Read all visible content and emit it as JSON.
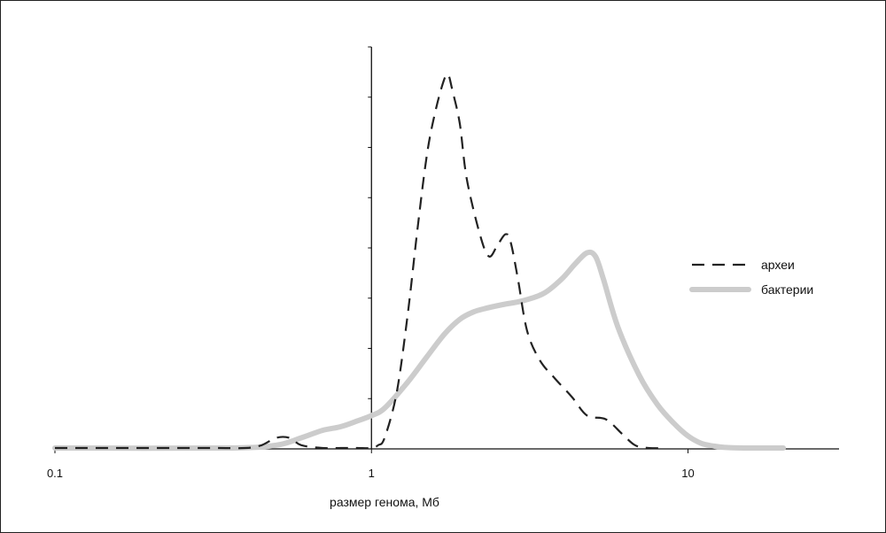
{
  "chart_data": {
    "type": "line",
    "xlabel": "размер генома, Мб",
    "ylabel": "",
    "x_scale": "log",
    "xlim": [
      0.1,
      30
    ],
    "ylim": [
      0,
      1
    ],
    "x_ticks": [
      {
        "value": 0.1,
        "label": "0.1"
      },
      {
        "value": 1,
        "label": "1"
      },
      {
        "value": 10,
        "label": "10"
      }
    ],
    "y_tick_count": 8,
    "grid": false,
    "legend": "right",
    "series": [
      {
        "name": "археи",
        "style": "dashed",
        "color": "#222222",
        "x": [
          0.1,
          0.3,
          0.4,
          0.45,
          0.5,
          0.55,
          0.6,
          0.7,
          0.8,
          0.9,
          1.0,
          1.05,
          1.1,
          1.2,
          1.3,
          1.4,
          1.5,
          1.6,
          1.7,
          1.75,
          1.8,
          1.9,
          2.0,
          2.2,
          2.35,
          2.5,
          2.65,
          2.75,
          2.9,
          3.1,
          3.4,
          3.8,
          4.3,
          4.8,
          5.5,
          6.2,
          6.8,
          7.5,
          8.5
        ],
        "y": [
          0,
          0,
          0,
          0.01,
          0.03,
          0.03,
          0.01,
          0,
          0,
          0,
          0,
          0.01,
          0.03,
          0.15,
          0.36,
          0.6,
          0.8,
          0.92,
          1.0,
          1.01,
          0.97,
          0.88,
          0.73,
          0.58,
          0.52,
          0.55,
          0.58,
          0.56,
          0.46,
          0.32,
          0.24,
          0.19,
          0.14,
          0.09,
          0.08,
          0.04,
          0.01,
          0,
          0
        ]
      },
      {
        "name": "бактерии",
        "style": "solid",
        "color": "#cccccc",
        "x": [
          0.1,
          0.35,
          0.5,
          0.6,
          0.7,
          0.8,
          0.9,
          1.0,
          1.1,
          1.3,
          1.5,
          1.7,
          1.9,
          2.1,
          2.3,
          2.6,
          3.0,
          3.5,
          4.0,
          4.4,
          4.8,
          5.1,
          5.4,
          6.0,
          7.0,
          8.0,
          9.0,
          10.0,
          11.0,
          12.0,
          13.0,
          15.0,
          20.0
        ],
        "y": [
          0,
          0,
          0.01,
          0.03,
          0.05,
          0.06,
          0.075,
          0.09,
          0.11,
          0.18,
          0.25,
          0.31,
          0.35,
          0.37,
          0.38,
          0.39,
          0.4,
          0.42,
          0.46,
          0.5,
          0.53,
          0.52,
          0.46,
          0.33,
          0.2,
          0.12,
          0.07,
          0.035,
          0.015,
          0.008,
          0.004,
          0.002,
          0.001
        ]
      }
    ]
  }
}
